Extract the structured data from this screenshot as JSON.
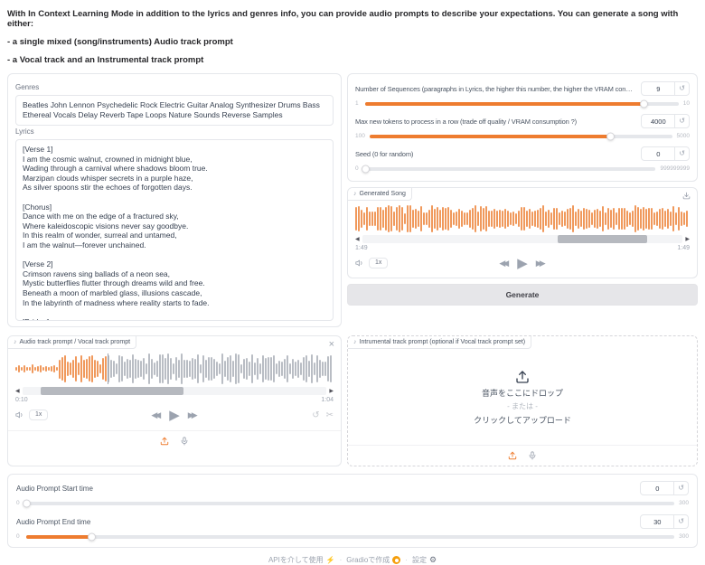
{
  "intro": {
    "line1": "With In Context Learning Mode in addition to the lyrics and genres info, you can provide audio prompts to describe your expectations. You can generate a song with either:",
    "line2": "- a single mixed (song/instruments) Audio track prompt",
    "line3": "- a Vocal track and an Instrumental track prompt"
  },
  "left_panel": {
    "genres_label": "Genres",
    "genres_value": "Beatles John Lennon Psychedelic Rock Electric Guitar Analog Synthesizer Drums Bass Ethereal Vocals Delay Reverb Tape Loops Nature Sounds Reverse Samples",
    "lyrics_label": "Lyrics",
    "lyrics_value": "[Verse 1]\nI am the cosmic walnut, crowned in midnight blue,\nWading through a carnival where shadows bloom true.\nMarzipan clouds whisper secrets in a purple haze,\nAs silver spoons stir the echoes of forgotten days.\n\n[Chorus]\nDance with me on the edge of a fractured sky,\nWhere kaleidoscopic visions never say goodbye.\nIn this realm of wonder, surreal and untamed,\nI am the walnut—forever unchained.\n\n[Verse 2]\nCrimson ravens sing ballads of a neon sea,\nMystic butterflies flutter through dreams wild and free.\nBeneath a moon of marbled glass, illusions cascade,\nIn the labyrinth of madness where reality starts to fade.\n\n[Bridge]\nFloating on the whispers of a time-bent tune,\nI trace the constellations of a cosmic monsoon,"
  },
  "params": {
    "sliders": [
      {
        "label": "Number of Sequences (paragraphs in Lyrics, the higher this number, the higher the VRAM consumption)",
        "value": 9,
        "min": 1,
        "max": 10
      },
      {
        "label": "Max new tokens to process in a row (trade off quality / VRAM consumption ?)",
        "value": 4000,
        "min": 100,
        "max": 5000
      },
      {
        "label": "Seed (0 for random)",
        "value": 0,
        "min": 0,
        "max": 999999999
      }
    ]
  },
  "generated_song": {
    "title": "Generated Song",
    "time_current": "1:49",
    "time_total": "1:49",
    "speed": "1x",
    "waveform": {
      "played_color": "#f0995c",
      "rest_color": "#f0995c",
      "played_pct": 100,
      "base": 0.42,
      "amp": 0.58,
      "seed": 7,
      "envelope": false
    },
    "scrollbar": {
      "left_pct": 61,
      "width_pct": 28
    }
  },
  "buttons": {
    "generate": "Generate"
  },
  "vocal_player": {
    "title": "Audio track prompt / Vocal track prompt",
    "time_current": "0:10",
    "time_total": "1:04",
    "speed": "1x",
    "waveform": {
      "played_color": "#f0995c",
      "rest_color": "#b9bdc4",
      "played_pct": 29,
      "base": 0.3,
      "amp": 0.7,
      "seed": 3,
      "envelope": true
    },
    "scrollbar": {
      "left_pct": 6,
      "width_pct": 47
    }
  },
  "instrumental_upload": {
    "title": "Intrumental track prompt (optional if Vocal track prompt set)",
    "drop_line1": "音声をここにドロップ",
    "drop_line2": "- または -",
    "drop_line3": "クリックしてアップロード"
  },
  "time_sliders": [
    {
      "label": "Audio Prompt Start time",
      "value": 0,
      "min": 0,
      "max": 300
    },
    {
      "label": "Audio Prompt End time",
      "value": 30,
      "min": 0,
      "max": 300
    }
  ],
  "footer": {
    "use_api": "APIを介して使用",
    "built_with": "Gradioで作成",
    "settings": "設定",
    "separator": "·"
  },
  "icons": {
    "music_note": "♪",
    "reset": "↺",
    "undo": "↺",
    "scissors": "✂",
    "close": "×",
    "scroll_left": "◀",
    "scroll_right": "▶",
    "rewind": "◀◀",
    "play": "▶",
    "forward": "▶▶",
    "lightning": "⚡",
    "gear": "⚙"
  },
  "colors": {
    "accent": "#ee7c2f",
    "waveform_orange": "#f0995c",
    "waveform_grey": "#b9bdc4"
  }
}
